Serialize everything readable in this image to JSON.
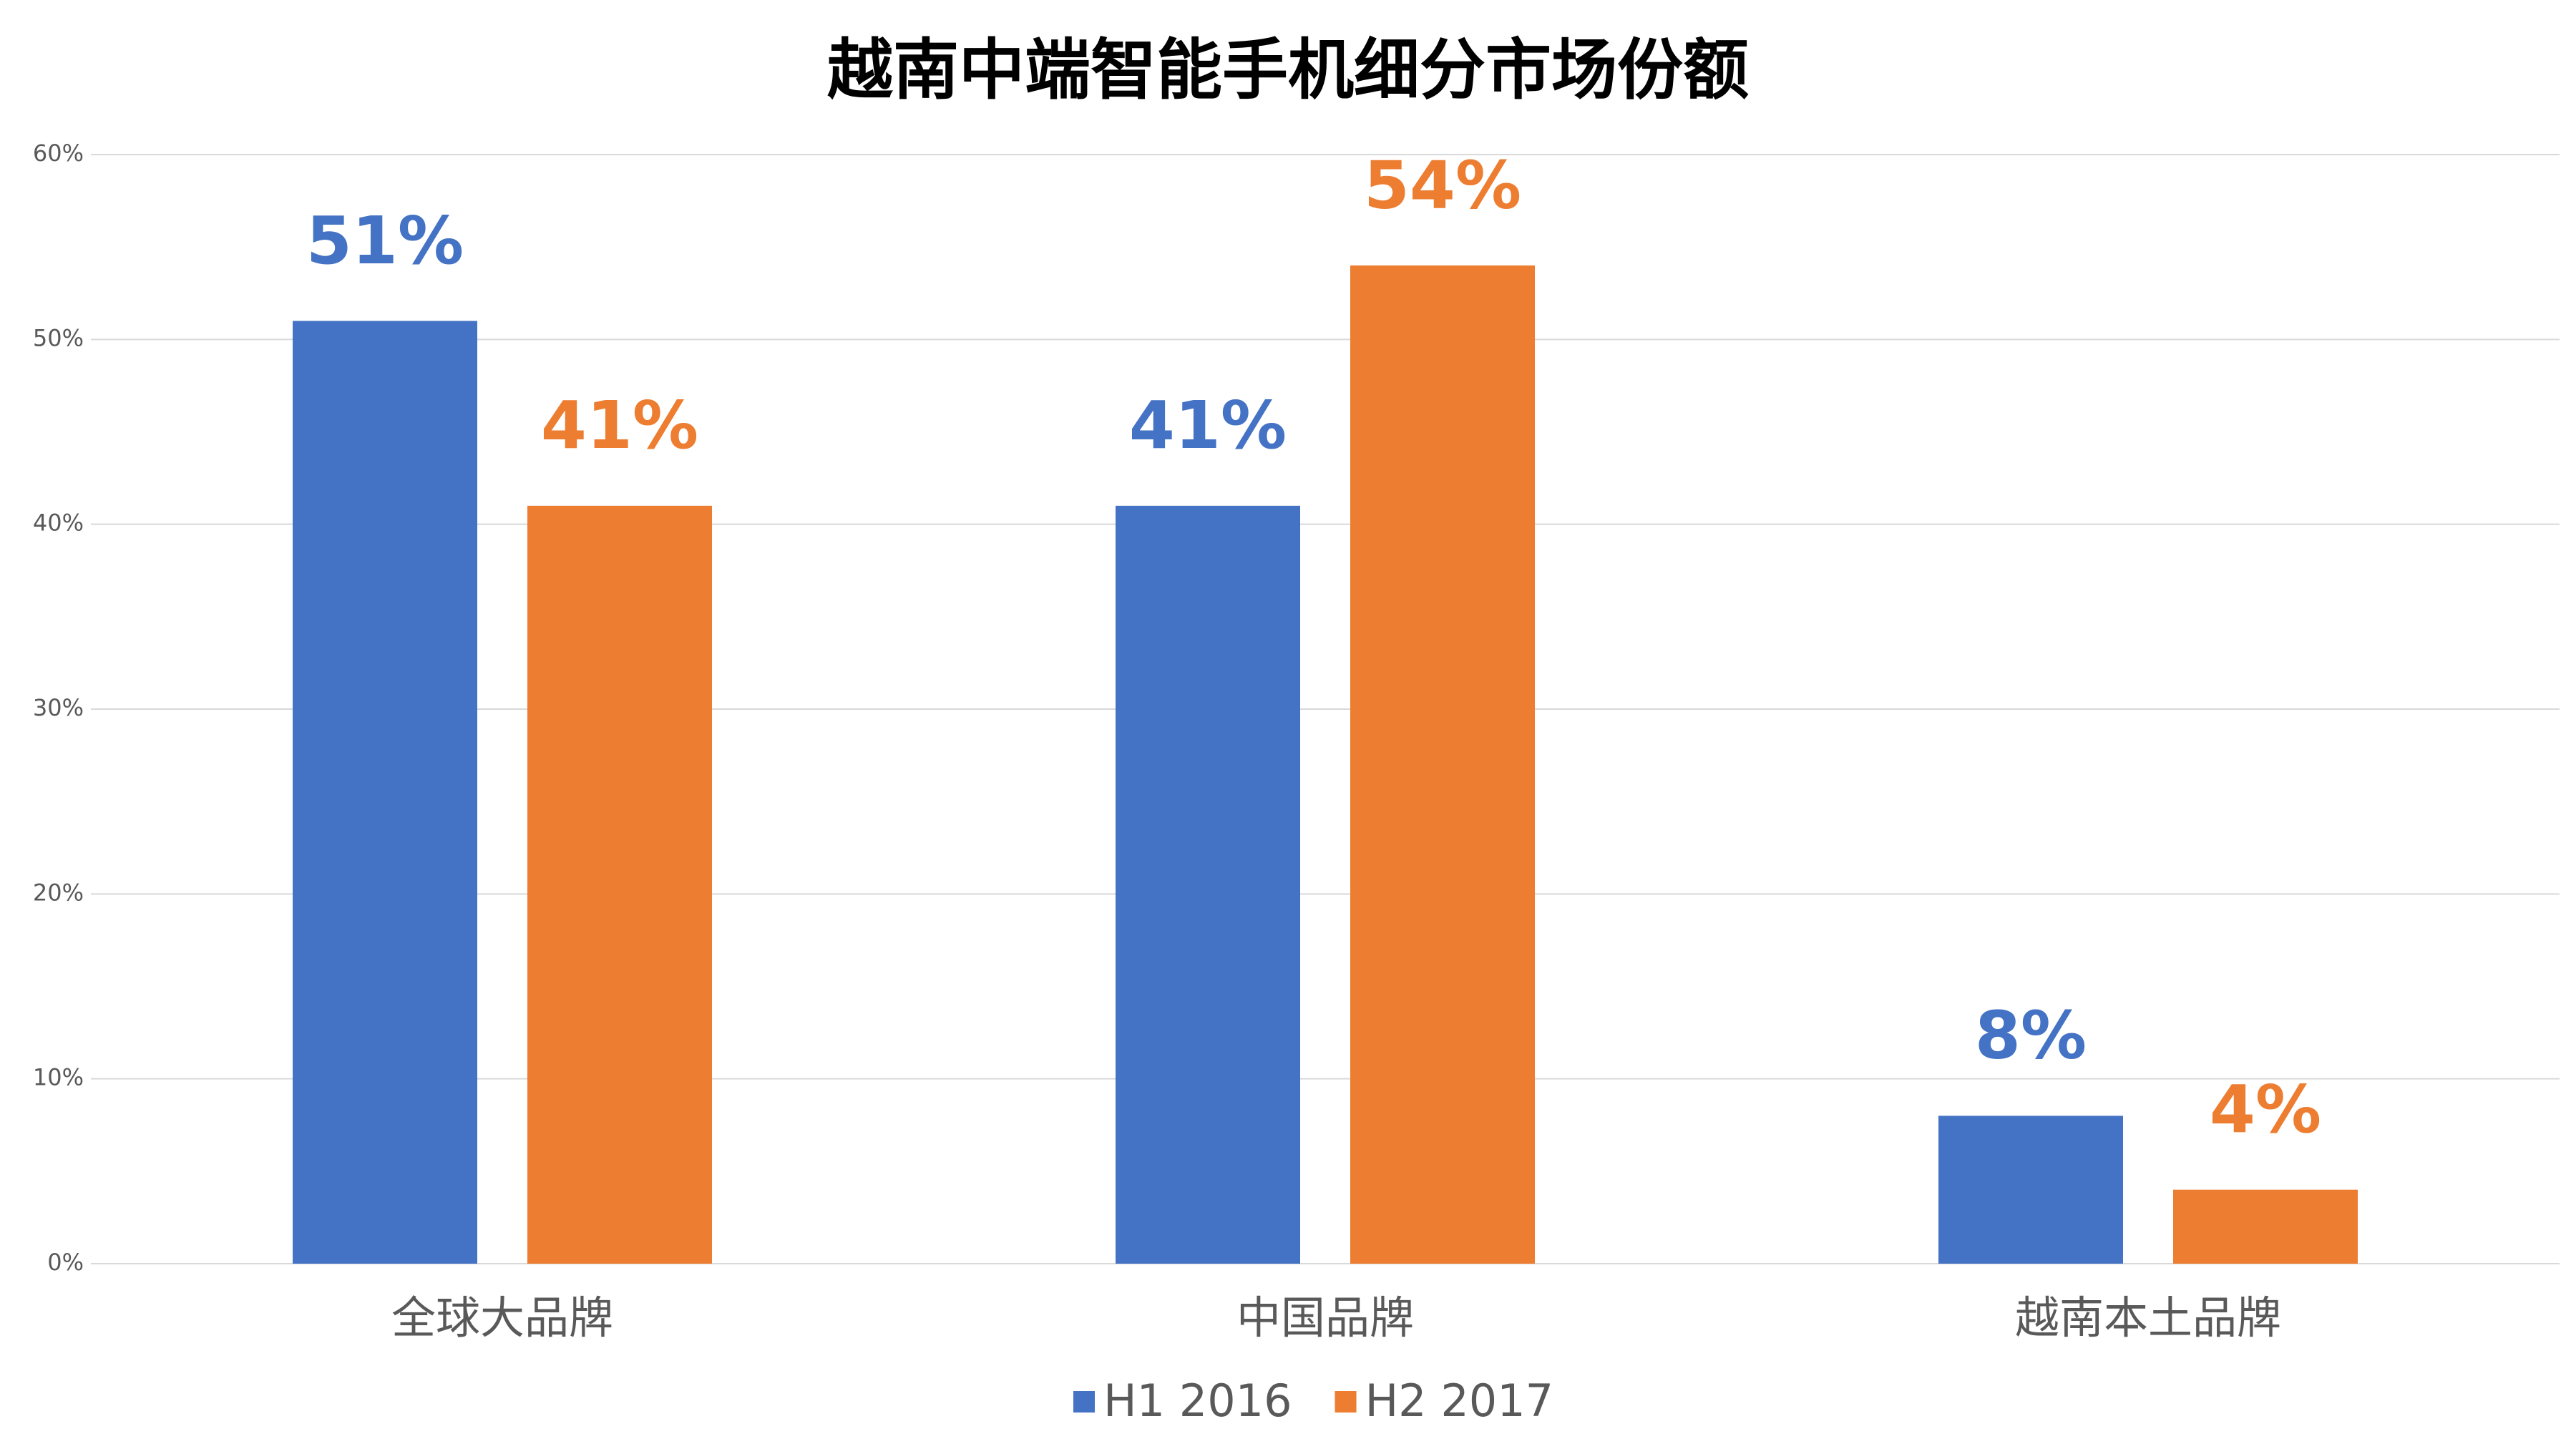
{
  "chart_data": {
    "type": "bar",
    "title": "越南中端智能手机细分市场份额",
    "categories": [
      "全球大品牌",
      "中国品牌",
      "越南本土品牌"
    ],
    "series": [
      {
        "name": "H1 2016",
        "color": "#4472c4",
        "values": [
          51,
          41,
          8
        ],
        "value_labels": [
          "51%",
          "41%",
          "8%"
        ]
      },
      {
        "name": "H2 2017",
        "color": "#ed7d31",
        "values": [
          41,
          54,
          4
        ],
        "value_labels": [
          "41%",
          "54%",
          "4%"
        ]
      }
    ],
    "ylim": [
      0,
      60
    ],
    "yticks": [
      {
        "value": 0,
        "label": "0%"
      },
      {
        "value": 10,
        "label": "10%"
      },
      {
        "value": 20,
        "label": "20%"
      },
      {
        "value": 30,
        "label": "30%"
      },
      {
        "value": 40,
        "label": "40%"
      },
      {
        "value": 50,
        "label": "50%"
      },
      {
        "value": 60,
        "label": "60%"
      }
    ],
    "grid": true,
    "legend": "bottom"
  }
}
